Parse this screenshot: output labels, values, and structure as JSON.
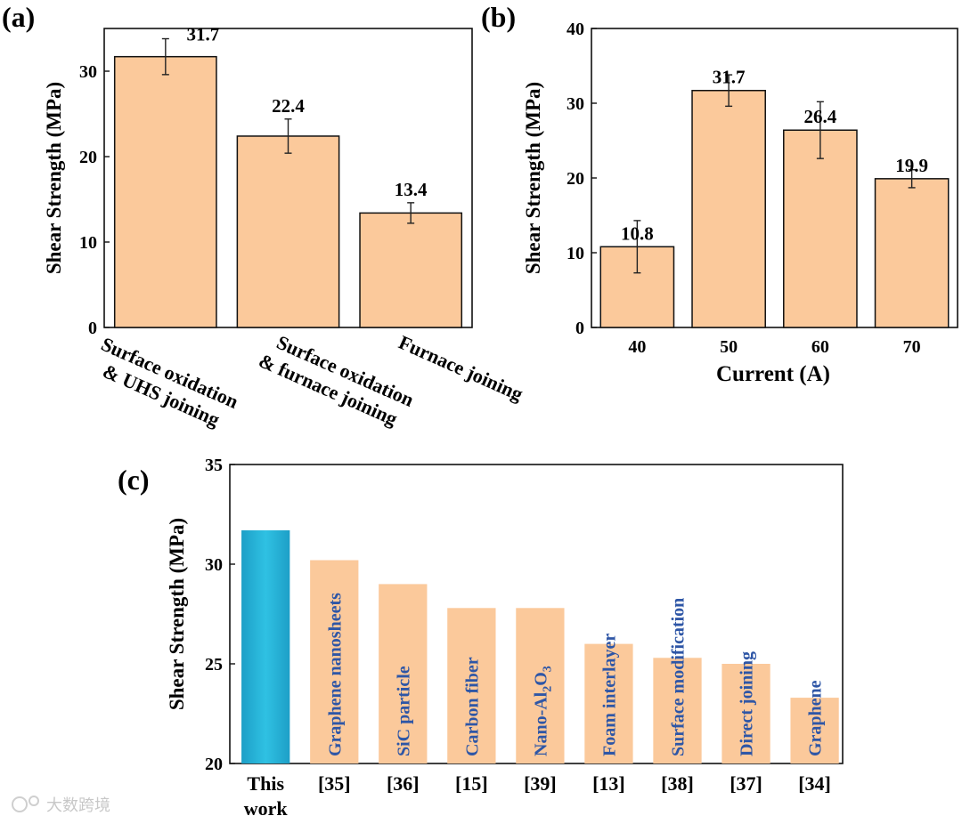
{
  "colors": {
    "bar": "#fbc99b",
    "bar_edge": "#111111",
    "highlight_top": "#1d9fc7",
    "highlight_mid": "#2fc1e3",
    "inbar_text": "#2e56a6"
  },
  "watermark": "大数跨境",
  "chart_data": [
    {
      "panel_label": "(a)",
      "type": "bar",
      "ylabel": "Shear Strength (MPa)",
      "xlabel": "",
      "ylim": [
        0,
        35
      ],
      "yticks": [
        0,
        10,
        20,
        30
      ],
      "categories": [
        [
          "Surface oxidation",
          "& UHS joining"
        ],
        [
          "Surface oxidation",
          "& furnace joining"
        ],
        [
          "Furnace joining"
        ]
      ],
      "values": [
        31.7,
        22.4,
        13.4
      ],
      "errors": [
        2.1,
        2.0,
        1.2
      ],
      "value_labels": [
        "31.7",
        "22.4",
        "13.4"
      ]
    },
    {
      "panel_label": "(b)",
      "type": "bar",
      "ylabel": "Shear Strength (MPa)",
      "xlabel": "Current (A)",
      "ylim": [
        0,
        40
      ],
      "yticks": [
        0,
        10,
        20,
        30,
        40
      ],
      "categories": [
        "40",
        "50",
        "60",
        "70"
      ],
      "values": [
        10.8,
        31.7,
        26.4,
        19.9
      ],
      "errors": [
        3.5,
        2.1,
        3.8,
        1.2
      ],
      "value_labels": [
        "10.8",
        "31.7",
        "26.4",
        "19.9"
      ]
    },
    {
      "panel_label": "(c)",
      "type": "bar",
      "ylabel": "Shear Strength (MPa)",
      "xlabel": "",
      "ylim": [
        20,
        35
      ],
      "yticks": [
        20,
        25,
        30,
        35
      ],
      "categories": [
        "This work",
        "[35]",
        "[36]",
        "[15]",
        "[39]",
        "[13]",
        "[38]",
        "[37]",
        "[34]"
      ],
      "values": [
        31.7,
        30.2,
        29.0,
        27.8,
        27.8,
        26.0,
        25.3,
        25.0,
        23.3
      ],
      "bar_labels": [
        "",
        "Graphene nanosheets",
        "SiC particle",
        "Carbon fiber",
        "Nano-Al2O3",
        "Foam interlayer",
        "Surface modification",
        "Direct joining",
        "Graphene"
      ],
      "highlight_index": 0
    }
  ]
}
